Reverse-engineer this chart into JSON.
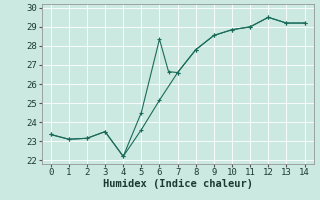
{
  "xlabel": "Humidex (Indice chaleur)",
  "xlim": [
    -0.5,
    14.5
  ],
  "ylim": [
    21.8,
    30.2
  ],
  "yticks": [
    22,
    23,
    24,
    25,
    26,
    27,
    28,
    29,
    30
  ],
  "xticks": [
    0,
    1,
    2,
    3,
    4,
    5,
    6,
    7,
    8,
    9,
    10,
    11,
    12,
    13,
    14
  ],
  "bg_color": "#cce9e1",
  "grid_color": "#aad4cc",
  "line_color": "#1a6b5a",
  "line1_x": [
    0,
    1,
    2,
    3,
    4,
    5,
    6,
    7,
    8,
    9,
    10,
    11,
    12,
    13,
    14
  ],
  "line1_y": [
    23.35,
    23.1,
    23.15,
    23.5,
    22.2,
    23.6,
    25.15,
    26.6,
    27.8,
    28.55,
    28.85,
    29.0,
    29.5,
    29.2,
    29.2
  ],
  "line2_x": [
    0,
    1,
    2,
    3,
    4,
    5,
    6,
    6.5,
    7,
    8,
    9,
    10,
    11,
    12,
    13,
    14
  ],
  "line2_y": [
    23.35,
    23.1,
    23.15,
    23.5,
    22.2,
    24.5,
    28.35,
    26.65,
    26.6,
    27.8,
    28.55,
    28.85,
    29.0,
    29.5,
    29.2,
    29.2
  ],
  "font_size_xlabel": 7.5,
  "tick_fontsize": 6.5
}
